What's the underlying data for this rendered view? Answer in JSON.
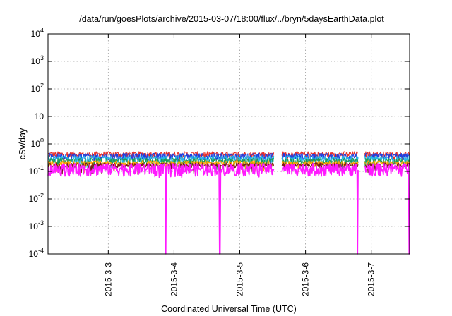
{
  "chart_data": {
    "type": "line",
    "title": "/data/run/goesPlots/archive/2015-03-07/18:00/flux/../bryn/5daysEarthData.plot",
    "xlabel": "Coordinated Universal Time (UTC)",
    "ylabel": "cSv/day",
    "y_scale": "log",
    "ylim": [
      0.0001,
      10000
    ],
    "xlim": [
      "2015-03-02T02:00",
      "2015-03-07T14:00"
    ],
    "grid": true,
    "legend": "none",
    "y_ticks": [
      {
        "value": 0.0001,
        "base": "10",
        "exp": "-4"
      },
      {
        "value": 0.001,
        "base": "10",
        "exp": "-3"
      },
      {
        "value": 0.01,
        "base": "10",
        "exp": "-2"
      },
      {
        "value": 0.1,
        "base": "10",
        "exp": "-1"
      },
      {
        "value": 1,
        "base": "10",
        "exp": "0"
      },
      {
        "value": 10,
        "base": "10",
        "exp": ""
      },
      {
        "value": 100,
        "base": "10",
        "exp": "2"
      },
      {
        "value": 1000,
        "base": "10",
        "exp": "3"
      },
      {
        "value": 10000,
        "base": "10",
        "exp": "4"
      }
    ],
    "x_ticks": [
      {
        "value": "2015-03-03T00:00",
        "label": "2015-3-3"
      },
      {
        "value": "2015-03-04T00:00",
        "label": "2015-3-4"
      },
      {
        "value": "2015-03-05T00:00",
        "label": "2015-3-5"
      },
      {
        "value": "2015-03-06T00:00",
        "label": "2015-3-6"
      },
      {
        "value": "2015-03-07T00:00",
        "label": "2015-3-7"
      }
    ],
    "gaps": [
      {
        "start": "2015-03-05T12:30",
        "end": "2015-03-05T15:20"
      },
      {
        "start": "2015-03-06T19:20",
        "end": "2015-03-06T21:30"
      }
    ],
    "dropouts": [
      "2015-03-03T21:00",
      "2015-03-04T16:40",
      "2015-03-06T19:00",
      "2015-03-07T13:50"
    ],
    "series": [
      {
        "color": "#e8302a",
        "level": 0.42,
        "noise": 0.12
      },
      {
        "color": "#1f3fe0",
        "level": 0.36,
        "noise": 0.11
      },
      {
        "color": "#27b6e8",
        "level": 0.29,
        "noise": 0.09
      },
      {
        "color": "#1f9a55",
        "level": 0.24,
        "noise": 0.07
      },
      {
        "color": "#ffa500",
        "level": 0.2,
        "noise": 0.05
      },
      {
        "color": "#7a1a1a",
        "level": 0.17,
        "noise": 0.04
      },
      {
        "color": "#ff1aff",
        "level": 0.13,
        "noise": 0.07
      }
    ]
  }
}
